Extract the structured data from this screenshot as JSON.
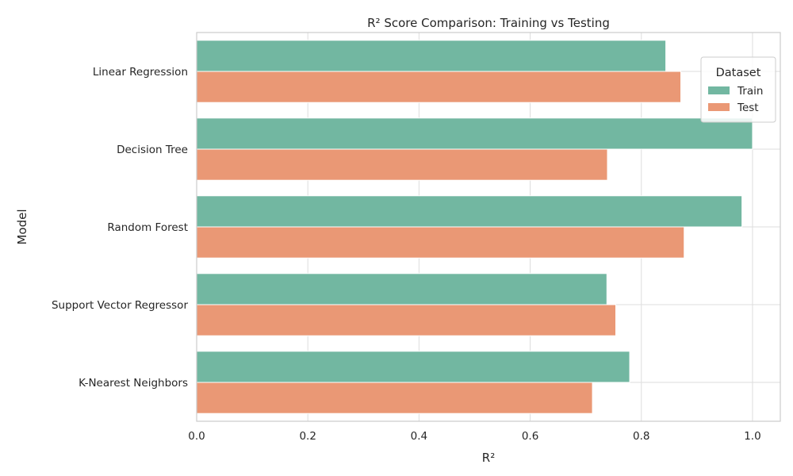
{
  "chart_data": {
    "type": "bar",
    "orientation": "horizontal",
    "title": "R² Score Comparison: Training vs Testing",
    "xlabel": "R²",
    "ylabel": "Model",
    "xlim": [
      0,
      1.05
    ],
    "xticks": [
      "0.0",
      "0.2",
      "0.4",
      "0.6",
      "0.8",
      "1.0"
    ],
    "grid": true,
    "categories": [
      "Linear Regression",
      "Decision Tree",
      "Random Forest",
      "Support Vector Regressor",
      "K-Nearest Neighbors"
    ],
    "series": [
      {
        "name": "Train",
        "color": "#72b7a1",
        "values": [
          0.844,
          1.0,
          0.981,
          0.738,
          0.779
        ]
      },
      {
        "name": "Test",
        "color": "#ea9875",
        "values": [
          0.871,
          0.739,
          0.877,
          0.754,
          0.712
        ]
      }
    ],
    "legend": {
      "title": "Dataset",
      "position": "top-right"
    }
  }
}
